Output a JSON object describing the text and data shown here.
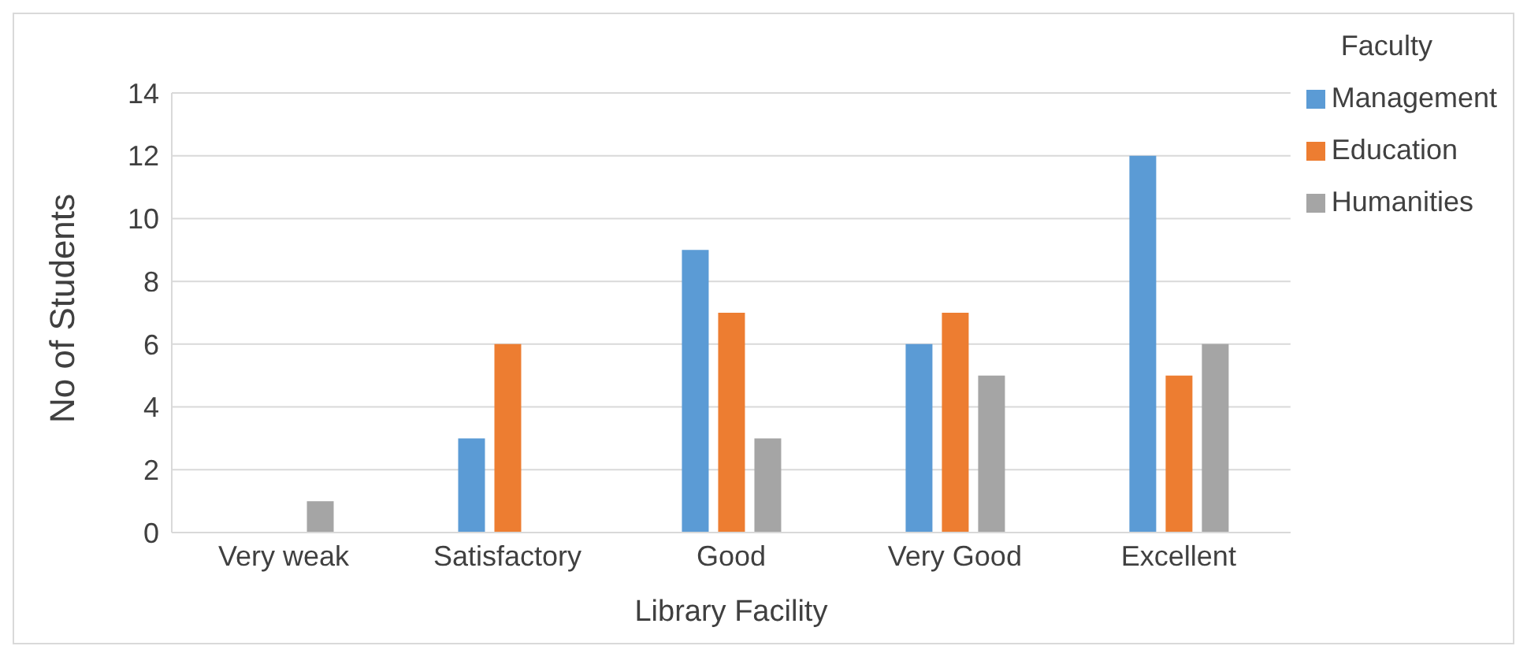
{
  "chart_data": {
    "type": "bar",
    "xlabel": "Library Facility",
    "ylabel": "No of Students",
    "legend_title": "Faculty",
    "categories": [
      "Very weak",
      "Satisfactory",
      "Good",
      "Very Good",
      "Excellent"
    ],
    "series": [
      {
        "name": "Management",
        "color": "#5b9bd5",
        "values": [
          0,
          3,
          9,
          6,
          12
        ]
      },
      {
        "name": "Education",
        "color": "#ed7d31",
        "values": [
          0,
          6,
          7,
          7,
          5
        ]
      },
      {
        "name": "Humanities",
        "color": "#a5a5a5",
        "values": [
          1,
          0,
          3,
          5,
          6
        ]
      }
    ],
    "ylim": [
      0,
      14
    ],
    "yticks": [
      0,
      2,
      4,
      6,
      8,
      10,
      12,
      14
    ],
    "grid": "y",
    "legend": "top right"
  }
}
